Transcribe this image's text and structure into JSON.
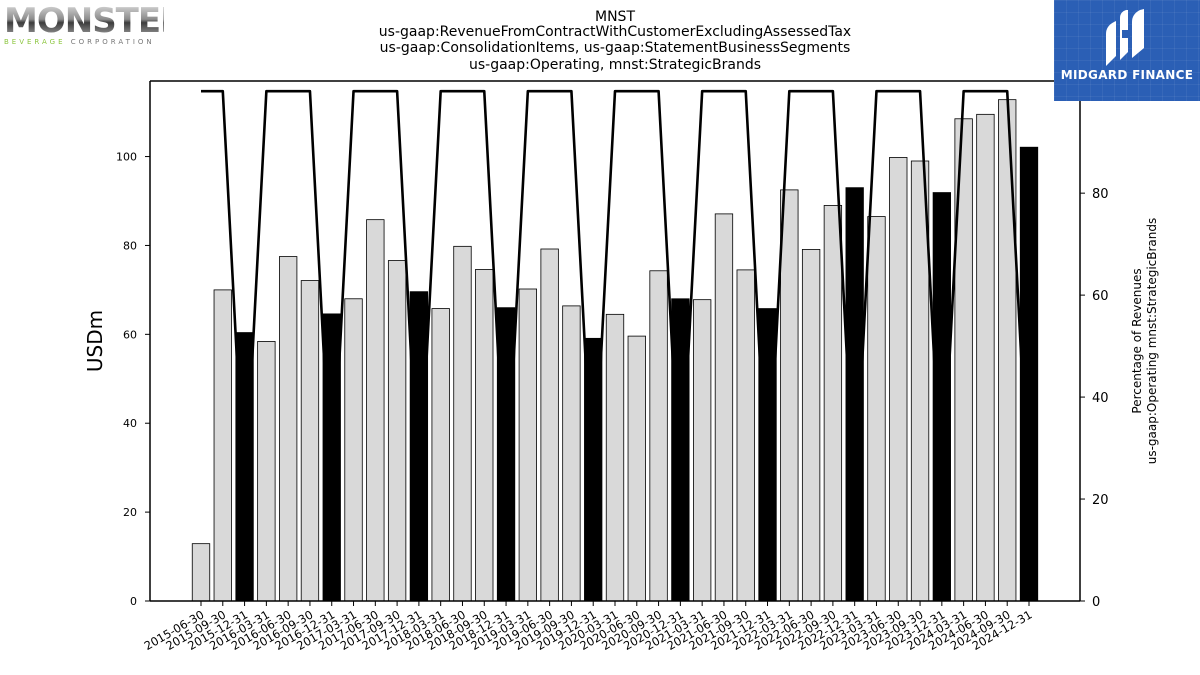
{
  "title_lines": [
    "MNST",
    "us-gaap:RevenueFromContractWithCustomerExcludingAssessedTax",
    "us-gaap:ConsolidationItems, us-gaap:StatementBusinessSegments",
    "us-gaap:Operating, mnst:StrategicBrands"
  ],
  "logos": {
    "left_main": "MONSTER",
    "left_sub_a": "BEVERAGE",
    "left_sub_b": "CORPORATION",
    "right_text": "MIDGARD FINANCE"
  },
  "colors": {
    "bar_default": "#d9d9d9",
    "bar_highlight": "#000000",
    "line": "#000000",
    "right_logo_bg": "#2b5fb5"
  },
  "chart_data": {
    "type": "bar",
    "ylabel": "USDm",
    "y2label_lines": [
      "Percentage of Revenues",
      "us-gaap:Operating mnst:StrategicBrands"
    ],
    "ylim": [
      0,
      117
    ],
    "y2lim": [
      0,
      102
    ],
    "yticks": [
      0,
      20,
      40,
      60,
      80,
      100
    ],
    "y2ticks": [
      0,
      20,
      40,
      60,
      80,
      100
    ],
    "grid": false,
    "categories": [
      "2015-06-30",
      "2015-09-30",
      "2015-12-31",
      "2016-03-31",
      "2016-06-30",
      "2016-09-30",
      "2016-12-31",
      "2017-03-31",
      "2017-06-30",
      "2017-09-30",
      "2017-12-31",
      "2018-03-31",
      "2018-06-30",
      "2018-09-30",
      "2018-12-31",
      "2019-03-31",
      "2019-06-30",
      "2019-09-30",
      "2019-12-31",
      "2020-03-31",
      "2020-06-30",
      "2020-09-30",
      "2020-12-31",
      "2021-03-31",
      "2021-06-30",
      "2021-09-30",
      "2021-12-31",
      "2022-03-31",
      "2022-06-30",
      "2022-09-30",
      "2022-12-31",
      "2023-03-31",
      "2023-06-30",
      "2023-09-30",
      "2023-12-31",
      "2024-03-31",
      "2024-06-30",
      "2024-09-30",
      "2024-12-31"
    ],
    "series": [
      {
        "kind": "bar",
        "axis": "left",
        "values": [
          12.9,
          70.0,
          60.4,
          58.4,
          77.5,
          72.1,
          64.6,
          68.0,
          85.8,
          76.6,
          69.6,
          65.8,
          79.8,
          74.6,
          66.0,
          70.2,
          79.2,
          66.4,
          59.1,
          64.5,
          59.6,
          74.3,
          68.0,
          67.8,
          87.1,
          74.5,
          65.8,
          92.5,
          79.1,
          89.0,
          93.0,
          86.5,
          99.8,
          99.0,
          91.9,
          108.5,
          109.5,
          112.8,
          102.1
        ],
        "highlight": [
          false,
          false,
          true,
          false,
          false,
          false,
          true,
          false,
          false,
          false,
          true,
          false,
          false,
          false,
          true,
          false,
          false,
          false,
          true,
          false,
          false,
          false,
          true,
          false,
          false,
          false,
          true,
          false,
          false,
          false,
          true,
          false,
          false,
          false,
          true,
          false,
          false,
          false,
          true
        ]
      },
      {
        "kind": "line",
        "axis": "right",
        "values": [
          100,
          100,
          19,
          100,
          100,
          100,
          19,
          100,
          100,
          100,
          19,
          100,
          100,
          100,
          19,
          100,
          100,
          100,
          19,
          100,
          100,
          100,
          19,
          100,
          100,
          100,
          19,
          100,
          100,
          100,
          19,
          100,
          100,
          100,
          19,
          100,
          100,
          100,
          19
        ]
      }
    ]
  }
}
